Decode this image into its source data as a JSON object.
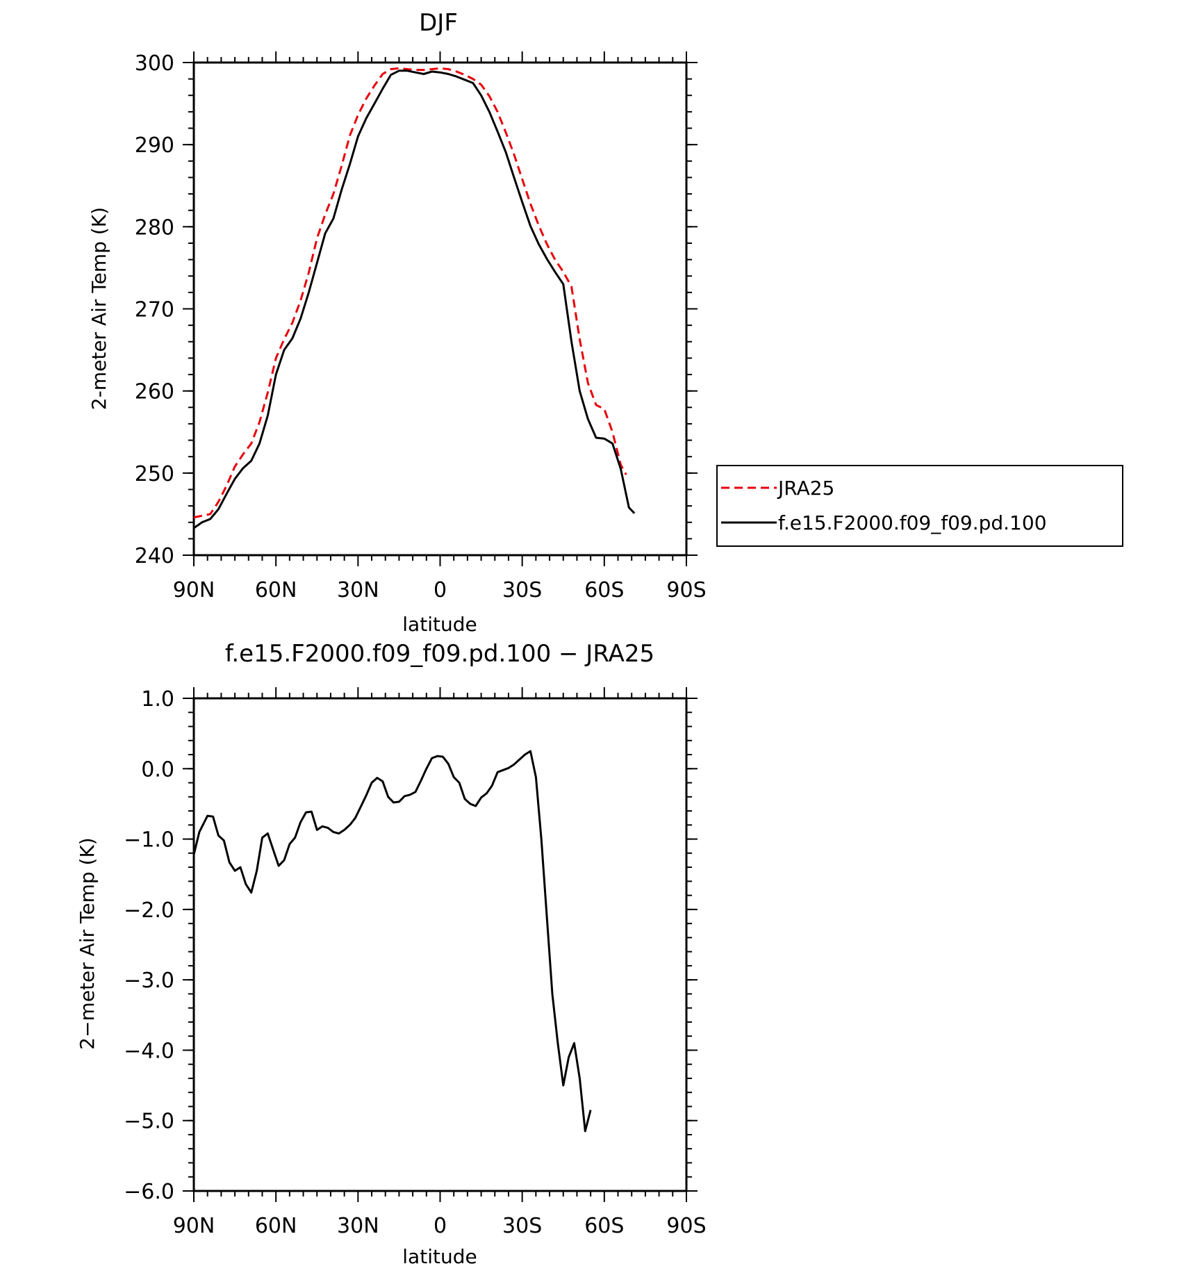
{
  "chart_data": [
    {
      "type": "line",
      "title": "DJF",
      "xlabel": "latitude",
      "ylabel": "2-meter Air Temp (K)",
      "x_direction": "90N to 90S",
      "xlim": [
        90,
        -90
      ],
      "ylim": [
        240,
        300
      ],
      "xticks": [
        90,
        60,
        30,
        0,
        -30,
        -60,
        -90
      ],
      "xtick_labels": [
        "90N",
        "60N",
        "30N",
        "0",
        "30S",
        "60S",
        "90S"
      ],
      "yticks": [
        240,
        250,
        260,
        270,
        280,
        290,
        300
      ],
      "ytick_labels": [
        "240",
        "250",
        "260",
        "270",
        "280",
        "290",
        "300"
      ],
      "grid": false,
      "legend": "right",
      "series": [
        {
          "name": "JRA25",
          "color": "#e8000b",
          "style": "dashed",
          "points": [
            [
              90,
              244.6
            ],
            [
              84,
              245.0
            ],
            [
              81,
              246.5
            ],
            [
              78,
              248.5
            ],
            [
              75,
              250.8
            ],
            [
              72,
              252.3
            ],
            [
              69,
              253.6
            ],
            [
              66,
              256.2
            ],
            [
              63,
              259.8
            ],
            [
              60,
              264.0
            ],
            [
              57,
              266.3
            ],
            [
              54,
              268.3
            ],
            [
              51,
              271.0
            ],
            [
              48,
              274.4
            ],
            [
              45,
              278.6
            ],
            [
              42,
              281.5
            ],
            [
              39,
              284.0
            ],
            [
              36,
              287.4
            ],
            [
              33,
              291.1
            ],
            [
              30,
              293.6
            ],
            [
              27,
              295.6
            ],
            [
              24,
              297.2
            ],
            [
              21,
              298.6
            ],
            [
              18,
              299.2
            ],
            [
              15,
              299.3
            ],
            [
              12,
              299.2
            ],
            [
              9,
              299.1
            ],
            [
              6,
              299.1
            ],
            [
              3,
              299.2
            ],
            [
              0,
              299.3
            ],
            [
              -3,
              299.2
            ],
            [
              -6,
              298.9
            ],
            [
              -9,
              298.5
            ],
            [
              -12,
              298.0
            ],
            [
              -15,
              297.3
            ],
            [
              -18,
              295.9
            ],
            [
              -21,
              294.0
            ],
            [
              -24,
              291.5
            ],
            [
              -27,
              288.8
            ],
            [
              -30,
              285.8
            ],
            [
              -33,
              282.8
            ],
            [
              -36,
              280.2
            ],
            [
              -39,
              277.9
            ],
            [
              -42,
              276.0
            ],
            [
              -45,
              274.5
            ],
            [
              -48,
              272.7
            ],
            [
              -51,
              266.3
            ],
            [
              -54,
              261.0
            ],
            [
              -57,
              258.3
            ],
            [
              -60,
              257.8
            ],
            [
              -63,
              255.0
            ],
            [
              -66,
              251.0
            ],
            [
              -68,
              249.8
            ]
          ]
        },
        {
          "name": "f.e15.F2000.f09_f09.pd.100",
          "color": "#000000",
          "style": "solid",
          "points": [
            [
              90,
              243.3
            ],
            [
              87,
              244.0
            ],
            [
              84,
              244.4
            ],
            [
              81,
              245.6
            ],
            [
              78,
              247.5
            ],
            [
              75,
              249.3
            ],
            [
              72,
              250.6
            ],
            [
              69,
              251.5
            ],
            [
              66,
              253.6
            ],
            [
              63,
              257.0
            ],
            [
              60,
              262.0
            ],
            [
              57,
              265.0
            ],
            [
              54,
              266.4
            ],
            [
              51,
              268.8
            ],
            [
              48,
              272.0
            ],
            [
              45,
              275.6
            ],
            [
              42,
              279.2
            ],
            [
              39,
              281.0
            ],
            [
              36,
              284.5
            ],
            [
              33,
              287.6
            ],
            [
              30,
              291.0
            ],
            [
              27,
              293.2
            ],
            [
              24,
              295.0
            ],
            [
              21,
              296.8
            ],
            [
              18,
              298.5
            ],
            [
              15,
              299.0
            ],
            [
              12,
              299.0
            ],
            [
              9,
              298.8
            ],
            [
              6,
              298.6
            ],
            [
              3,
              298.9
            ],
            [
              0,
              298.8
            ],
            [
              -3,
              298.6
            ],
            [
              -6,
              298.3
            ],
            [
              -9,
              297.9
            ],
            [
              -12,
              297.5
            ],
            [
              -15,
              296.0
            ],
            [
              -18,
              294.0
            ],
            [
              -21,
              291.6
            ],
            [
              -24,
              289.1
            ],
            [
              -27,
              286.0
            ],
            [
              -30,
              283.0
            ],
            [
              -33,
              280.1
            ],
            [
              -36,
              277.9
            ],
            [
              -39,
              276.1
            ],
            [
              -42,
              274.5
            ],
            [
              -45,
              273.0
            ],
            [
              -48,
              266.0
            ],
            [
              -51,
              260.0
            ],
            [
              -54,
              256.6
            ],
            [
              -57,
              254.3
            ],
            [
              -60,
              254.2
            ],
            [
              -63,
              253.6
            ],
            [
              -66,
              250.5
            ],
            [
              -69,
              245.8
            ],
            [
              -71,
              245.1
            ]
          ]
        }
      ]
    },
    {
      "type": "line",
      "title": "f.e15.F2000.f09_f09.pd.100 − JRA25",
      "xlabel": "latitude",
      "ylabel": "2−meter Air Temp (K)",
      "x_direction": "90N to 90S",
      "xlim": [
        90,
        -90
      ],
      "ylim": [
        -6,
        1
      ],
      "xticks": [
        90,
        60,
        30,
        0,
        -30,
        -60,
        -90
      ],
      "xtick_labels": [
        "90N",
        "60N",
        "30N",
        "0",
        "30S",
        "60S",
        "90S"
      ],
      "yticks": [
        1,
        0,
        -1,
        -2,
        -3,
        -4,
        -5,
        -6
      ],
      "ytick_labels": [
        "1.0",
        "0.0",
        "−1.0",
        "−2.0",
        "−3.0",
        "−4.0",
        "−5.0",
        "−6.0"
      ],
      "grid": false,
      "series": [
        {
          "color": "#000000",
          "style": "solid",
          "points": [
            [
              90,
              -1.22
            ],
            [
              88,
              -0.9
            ],
            [
              85,
              -0.67
            ],
            [
              83,
              -0.68
            ],
            [
              81,
              -0.95
            ],
            [
              79,
              -1.02
            ],
            [
              77,
              -1.33
            ],
            [
              75,
              -1.45
            ],
            [
              73,
              -1.4
            ],
            [
              71,
              -1.64
            ],
            [
              69,
              -1.76
            ],
            [
              67,
              -1.45
            ],
            [
              65,
              -0.98
            ],
            [
              63,
              -0.92
            ],
            [
              61,
              -1.15
            ],
            [
              59,
              -1.38
            ],
            [
              57,
              -1.3
            ],
            [
              55,
              -1.07
            ],
            [
              53,
              -0.98
            ],
            [
              51,
              -0.76
            ],
            [
              49,
              -0.62
            ],
            [
              47,
              -0.61
            ],
            [
              45,
              -0.87
            ],
            [
              43,
              -0.82
            ],
            [
              41,
              -0.84
            ],
            [
              39,
              -0.9
            ],
            [
              37,
              -0.92
            ],
            [
              35,
              -0.87
            ],
            [
              33,
              -0.8
            ],
            [
              31,
              -0.7
            ],
            [
              29,
              -0.54
            ],
            [
              27,
              -0.38
            ],
            [
              25,
              -0.2
            ],
            [
              23,
              -0.13
            ],
            [
              21,
              -0.18
            ],
            [
              19,
              -0.4
            ],
            [
              17,
              -0.48
            ],
            [
              15,
              -0.47
            ],
            [
              13,
              -0.39
            ],
            [
              11,
              -0.37
            ],
            [
              9,
              -0.33
            ],
            [
              7,
              -0.17
            ],
            [
              5,
              0.0
            ],
            [
              3,
              0.15
            ],
            [
              1,
              0.18
            ],
            [
              -1,
              0.17
            ],
            [
              -3,
              0.07
            ],
            [
              -5,
              -0.12
            ],
            [
              -7,
              -0.2
            ],
            [
              -9,
              -0.43
            ],
            [
              -11,
              -0.5
            ],
            [
              -13,
              -0.53
            ],
            [
              -15,
              -0.41
            ],
            [
              -17,
              -0.35
            ],
            [
              -19,
              -0.24
            ],
            [
              -21,
              -0.05
            ],
            [
              -23,
              -0.02
            ],
            [
              -25,
              0.01
            ],
            [
              -27,
              0.06
            ],
            [
              -29,
              0.13
            ],
            [
              -31,
              0.2
            ],
            [
              -33,
              0.25
            ],
            [
              -35,
              -0.12
            ],
            [
              -37,
              -1.0
            ],
            [
              -39,
              -2.1
            ],
            [
              -41,
              -3.2
            ],
            [
              -43,
              -3.9
            ],
            [
              -45,
              -4.5
            ],
            [
              -47,
              -4.1
            ],
            [
              -49,
              -3.9
            ],
            [
              -51,
              -4.4
            ],
            [
              -53,
              -5.15
            ],
            [
              -55,
              -4.85
            ]
          ]
        }
      ]
    }
  ]
}
